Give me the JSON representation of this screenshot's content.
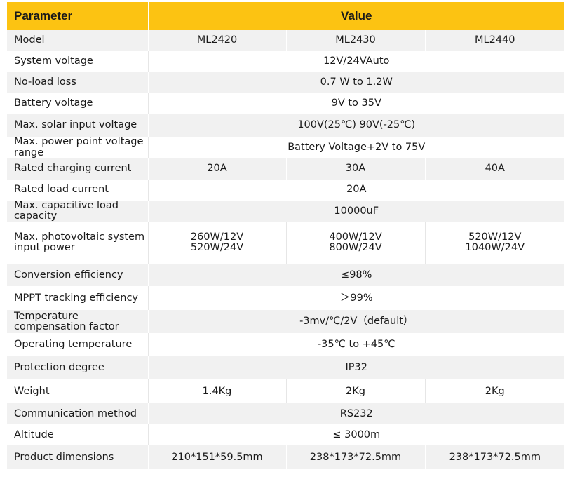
{
  "table": {
    "headers": {
      "parameter": "Parameter",
      "value": "Value"
    },
    "rows": [
      {
        "param": "Model",
        "cells": [
          "ML2420",
          "ML2430",
          "ML2440"
        ]
      },
      {
        "param": "System voltage",
        "cells": [
          "12V/24VAuto"
        ]
      },
      {
        "param": "No-load loss",
        "cells": [
          "0.7 W to 1.2W"
        ]
      },
      {
        "param": "Battery voltage",
        "cells": [
          "9V to 35V"
        ]
      },
      {
        "param": "Max. solar input voltage",
        "cells": [
          "100V(25℃) 90V(-25℃)"
        ]
      },
      {
        "param": [
          "Max. power point voltage",
          "range"
        ],
        "cells": [
          "Battery Voltage+2V to 75V"
        ]
      },
      {
        "param": "Rated charging current",
        "cells": [
          "20A",
          "30A",
          "40A"
        ]
      },
      {
        "param": "Rated load current",
        "cells": [
          "20A"
        ]
      },
      {
        "param": [
          "Max. capacitive load",
          "capacity"
        ],
        "cells": [
          "10000uF"
        ]
      },
      {
        "param": [
          "Max. photovoltaic system",
          "input power"
        ],
        "cells": [
          [
            "260W/12V",
            "520W/24V"
          ],
          [
            "400W/12V",
            "800W/24V"
          ],
          [
            "520W/12V",
            "1040W/24V"
          ]
        ]
      },
      {
        "param": "Conversion efficiency",
        "cells": [
          "≤98%"
        ]
      },
      {
        "param": "MPPT tracking efficiency",
        "cells": [
          "＞99%"
        ]
      },
      {
        "param": [
          "Temperature",
          "compensation factor"
        ],
        "cells": [
          "-3mv/℃/2V（default）"
        ]
      },
      {
        "param": "Operating temperature",
        "cells": [
          "-35℃ to +45℃"
        ]
      },
      {
        "param": "Protection degree",
        "cells": [
          "IP32"
        ]
      },
      {
        "param": "Weight",
        "cells": [
          "1.4Kg",
          "2Kg",
          "2Kg"
        ]
      },
      {
        "param": "Communication method",
        "cells": [
          "RS232"
        ]
      },
      {
        "param": "Altitude",
        "cells": [
          "≤ 3000m"
        ]
      },
      {
        "param": "Product dimensions",
        "cells": [
          "210*151*59.5mm",
          "238*173*72.5mm",
          "238*173*72.5mm"
        ]
      }
    ]
  }
}
